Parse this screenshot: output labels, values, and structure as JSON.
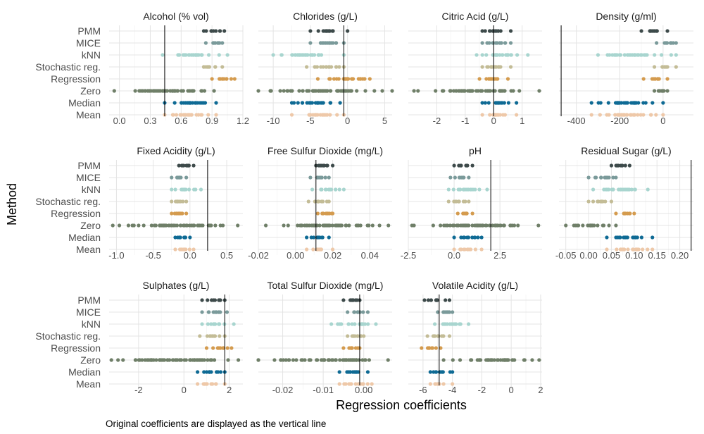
{
  "chart_data": {
    "type": "scatter",
    "title": "",
    "xlabel": "Regression coefficients",
    "ylabel": "Method",
    "caption": "Original coefficients are displayed as the vertical line",
    "methods": [
      "PMM",
      "MICE",
      "kNN",
      "Stochastic reg.",
      "Regression",
      "Zero",
      "Median",
      "Mean"
    ],
    "method_colors": {
      "PMM": "#3d4a4a",
      "MICE": "#7a9a9a",
      "kNN": "#a8d5cf",
      "Stochastic reg.": "#c3bc96",
      "Regression": "#d49b4e",
      "Zero": "#6f7f68",
      "Median": "#0e6a94",
      "Mean": "#eec8a8"
    },
    "grid": true,
    "panels": [
      {
        "title": "Alcohol (% vol)",
        "xlim": [
          -0.1,
          1.2
        ],
        "ticks": [
          0.0,
          0.3,
          0.6,
          0.9,
          1.2
        ],
        "tick_labels": [
          "0.0",
          "0.3",
          "0.6",
          "0.9",
          "1.2"
        ],
        "original": 0.44,
        "ranges": {
          "PMM": [
            0.82,
            1.02
          ],
          "MICE": [
            0.84,
            1.0
          ],
          "kNN": [
            0.42,
            1.05
          ],
          "Stochastic reg.": [
            0.82,
            1.0
          ],
          "Regression": [
            0.9,
            1.12
          ],
          "Zero": [
            -0.05,
            0.92
          ],
          "Median": [
            0.44,
            0.94
          ],
          "Mean": [
            0.44,
            0.94
          ]
        }
      },
      {
        "title": "Chlorides (g/L)",
        "xlim": [
          -12,
          6
        ],
        "ticks": [
          -10,
          -5,
          0,
          5
        ],
        "tick_labels": [
          "-10",
          "-5",
          "0",
          "5"
        ],
        "original": -0.5,
        "ranges": {
          "PMM": [
            -5,
            0
          ],
          "MICE": [
            -5,
            -0.5
          ],
          "kNN": [
            -10,
            -0.5
          ],
          "Stochastic reg.": [
            -5.5,
            -0.5
          ],
          "Regression": [
            -4,
            3
          ],
          "Zero": [
            -12,
            6
          ],
          "Median": [
            -7.5,
            -1
          ],
          "Mean": [
            -7.5,
            -0.5
          ]
        }
      },
      {
        "title": "Citric Acid (g/L)",
        "xlim": [
          -3,
          1.7
        ],
        "ticks": [
          -2,
          -1,
          0,
          1
        ],
        "tick_labels": [
          "-2",
          "-1",
          "0",
          "1"
        ],
        "original": 0.0,
        "ranges": {
          "PMM": [
            -0.4,
            0.6
          ],
          "MICE": [
            -0.4,
            0.6
          ],
          "kNN": [
            -0.6,
            1.2
          ],
          "Stochastic reg.": [
            -0.4,
            0.6
          ],
          "Regression": [
            -0.5,
            0.5
          ],
          "Zero": [
            -2.8,
            1.6
          ],
          "Median": [
            -0.4,
            0.8
          ],
          "Mean": [
            -0.4,
            0.8
          ]
        }
      },
      {
        "title": "Density (g/ml)",
        "xlim": [
          -480,
          140
        ],
        "ticks": [
          -400,
          -200,
          0
        ],
        "tick_labels": [
          "-400",
          "-200",
          "0"
        ],
        "original": -470,
        "ranges": {
          "PMM": [
            -100,
            20
          ],
          "MICE": [
            -30,
            60
          ],
          "kNN": [
            -300,
            60
          ],
          "Stochastic reg.": [
            -40,
            60
          ],
          "Regression": [
            -90,
            20
          ],
          "Zero": [
            -40,
            20
          ],
          "Median": [
            -330,
            0
          ],
          "Mean": [
            -330,
            0
          ]
        }
      },
      {
        "title": "Fixed Acidity (g/L)",
        "xlim": [
          -1.1,
          0.72
        ],
        "ticks": [
          -1.0,
          -0.5,
          0.0,
          0.5
        ],
        "tick_labels": [
          "-1.0",
          "-0.5",
          "0.0",
          "0.5"
        ],
        "original": 0.24,
        "ranges": {
          "PMM": [
            -0.15,
            0.05
          ],
          "MICE": [
            -0.25,
            -0.05
          ],
          "kNN": [
            -0.25,
            0.15
          ],
          "Stochastic reg.": [
            -0.25,
            -0.05
          ],
          "Regression": [
            -0.25,
            -0.05
          ],
          "Zero": [
            -1.05,
            0.65
          ],
          "Median": [
            -0.2,
            0.0
          ],
          "Mean": [
            -0.2,
            0.05
          ]
        }
      },
      {
        "title": "Free Sulfur Dioxide (mg/L)",
        "xlim": [
          -0.02,
          0.052
        ],
        "ticks": [
          -0.02,
          0.0,
          0.02,
          0.04
        ],
        "tick_labels": [
          "-0.02",
          "0.00",
          "0.02",
          "0.04"
        ],
        "original": 0.011,
        "ranges": {
          "PMM": [
            0.011,
            0.02
          ],
          "MICE": [
            0.008,
            0.018
          ],
          "kNN": [
            0.009,
            0.026
          ],
          "Stochastic reg.": [
            0.007,
            0.018
          ],
          "Regression": [
            0.012,
            0.02
          ],
          "Zero": [
            -0.016,
            0.05
          ],
          "Median": [
            0.006,
            0.018
          ],
          "Mean": [
            0.006,
            0.02
          ]
        }
      },
      {
        "title": "pH",
        "xlim": [
          -2.5,
          4.8
        ],
        "ticks": [
          -2.5,
          0.0,
          2.5
        ],
        "tick_labels": [
          "-2.5",
          "0.0",
          "2.5"
        ],
        "original": 2.0,
        "ranges": {
          "PMM": [
            0.0,
            1.0
          ],
          "MICE": [
            -0.2,
            0.8
          ],
          "kNN": [
            -0.3,
            1.8
          ],
          "Stochastic reg.": [
            -0.3,
            0.8
          ],
          "Regression": [
            0.2,
            1.0
          ],
          "Zero": [
            -2.3,
            4.6
          ],
          "Median": [
            0.0,
            1.5
          ],
          "Mean": [
            0.0,
            1.5
          ]
        }
      },
      {
        "title": "Residual Sugar (g/L)",
        "xlim": [
          -0.065,
          0.23
        ],
        "ticks": [
          -0.05,
          0.0,
          0.05,
          0.1,
          0.15,
          0.2
        ],
        "tick_labels": [
          "-0.05",
          "0.00",
          "0.05",
          "0.10",
          "0.15",
          "0.20"
        ],
        "original": 0.225,
        "ranges": {
          "PMM": [
            0.05,
            0.09
          ],
          "MICE": [
            0.0,
            0.06
          ],
          "kNN": [
            0.01,
            0.13
          ],
          "Stochastic reg.": [
            0.0,
            0.05
          ],
          "Regression": [
            0.06,
            0.1
          ],
          "Zero": [
            -0.05,
            0.06
          ],
          "Median": [
            0.04,
            0.14
          ],
          "Mean": [
            0.04,
            0.14
          ]
        }
      },
      {
        "title": "Sulphates (g/L)",
        "xlim": [
          -3.3,
          2.6
        ],
        "ticks": [
          -2,
          0,
          2
        ],
        "tick_labels": [
          "-2",
          "0",
          "2"
        ],
        "original": 1.8,
        "ranges": {
          "PMM": [
            0.8,
            1.8
          ],
          "MICE": [
            0.8,
            1.9
          ],
          "kNN": [
            0.8,
            2.2
          ],
          "Stochastic reg.": [
            0.7,
            1.8
          ],
          "Regression": [
            1.0,
            2.1
          ],
          "Zero": [
            -3.2,
            2.4
          ],
          "Median": [
            0.6,
            1.8
          ],
          "Mean": [
            0.6,
            1.8
          ]
        }
      },
      {
        "title": "Total Sulfur Dioxide (mg/L)",
        "xlim": [
          -0.026,
          0.007
        ],
        "ticks": [
          -0.02,
          -0.01,
          0.0
        ],
        "tick_labels": [
          "-0.02",
          "-0.01",
          "0.00"
        ],
        "original": -0.001,
        "ranges": {
          "PMM": [
            -0.005,
            -0.001
          ],
          "MICE": [
            -0.004,
            0.001
          ],
          "kNN": [
            -0.008,
            0.003
          ],
          "Stochastic reg.": [
            -0.004,
            0.0
          ],
          "Regression": [
            -0.005,
            -0.001
          ],
          "Zero": [
            -0.026,
            0.006
          ],
          "Median": [
            -0.006,
            0.001
          ],
          "Mean": [
            -0.006,
            0.002
          ]
        }
      },
      {
        "title": "Volatile Acidity (g/L)",
        "xlim": [
          -7.0,
          2.1
        ],
        "ticks": [
          -6,
          -4,
          -2,
          0,
          2
        ],
        "tick_labels": [
          "-6",
          "-4",
          "-2",
          "0",
          "2"
        ],
        "original": -4.9,
        "ranges": {
          "PMM": [
            -5.9,
            -4.2
          ],
          "MICE": [
            -5.0,
            -4.0
          ],
          "kNN": [
            -5.2,
            -2.9
          ],
          "Stochastic reg.": [
            -5.7,
            -4.2
          ],
          "Regression": [
            -6.1,
            -4.8
          ],
          "Zero": [
            -4.6,
            1.9
          ],
          "Median": [
            -5.5,
            -4.0
          ],
          "Mean": [
            -5.5,
            -4.0
          ]
        }
      }
    ]
  }
}
